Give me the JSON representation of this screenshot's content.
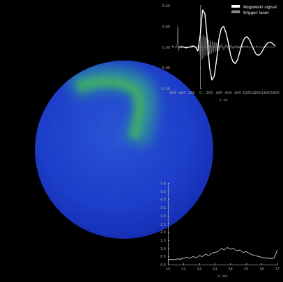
{
  "chart_data": [
    {
      "type": "line",
      "x_label": "t, ns",
      "xlim": [
        -600,
        1600
      ],
      "xticks": [
        -600,
        -400,
        -200,
        0,
        200,
        400,
        600,
        800,
        1000,
        1200,
        1400,
        1600
      ],
      "ylim": [
        -0.1,
        0.1
      ],
      "yticks": [
        {
          "value": -0.1,
          "label": "-0.10"
        },
        {
          "value": -0.05,
          "label": "-0.05"
        },
        {
          "value": 0,
          "label": "0.00"
        },
        {
          "value": 0.05,
          "label": "0.05"
        },
        {
          "value": 0.1,
          "label": "0.10"
        }
      ],
      "legend": "upper right",
      "grid": false,
      "series": [
        {
          "name": "Rogowski signal",
          "color": "#ffffff",
          "x": [
            -450,
            -400,
            -350,
            -300,
            -250,
            -200,
            -150,
            -100,
            -50,
            0,
            50,
            100,
            150,
            200,
            250,
            300,
            350,
            400,
            450,
            500,
            550,
            600,
            650,
            700,
            750,
            800,
            850,
            900,
            950,
            1000,
            1050,
            1100,
            1150,
            1200,
            1250,
            1300,
            1350,
            1400,
            1450,
            1500,
            1550,
            1600
          ],
          "values": [
            0,
            0,
            0,
            -0.002,
            0,
            0,
            0.003,
            0,
            -0.01,
            0.03,
            0.09,
            0.08,
            0.02,
            -0.05,
            -0.08,
            -0.07,
            -0.03,
            0.02,
            0.045,
            0.05,
            0.035,
            0.01,
            -0.02,
            -0.035,
            -0.04,
            -0.03,
            -0.01,
            0.01,
            0.022,
            0.025,
            0.018,
            0.005,
            -0.008,
            -0.018,
            -0.02,
            -0.015,
            -0.005,
            0.005,
            0.01,
            0.012,
            0.008,
            0.003
          ]
        },
        {
          "name": "trigger laser",
          "color": "#8a8a8a",
          "x": [
            -600,
            -550,
            -500,
            -490,
            -480,
            -470,
            -460,
            -450,
            -400,
            -300,
            -200,
            -100,
            -50,
            -20,
            0,
            20,
            40,
            60,
            80,
            100,
            120,
            140,
            160,
            180,
            200,
            220,
            240,
            260,
            280,
            300,
            320,
            340,
            360,
            380,
            400,
            450,
            500,
            550,
            600,
            650,
            700,
            750,
            800,
            900,
            1000,
            1100
          ],
          "values": [
            0,
            0,
            0,
            0.01,
            0.05,
            0.02,
            -0.01,
            0,
            0,
            0,
            0,
            0,
            0,
            0.005,
            -0.02,
            0.025,
            -0.03,
            0.03,
            -0.025,
            0.025,
            -0.02,
            0.022,
            -0.02,
            0.018,
            -0.018,
            0.016,
            -0.015,
            0.014,
            -0.013,
            0.012,
            -0.012,
            0.011,
            -0.01,
            0.01,
            -0.009,
            0.008,
            -0.007,
            0.006,
            -0.005,
            0.005,
            -0.004,
            0.003,
            -0.003,
            0.002,
            0,
            0
          ]
        }
      ]
    },
    {
      "type": "line",
      "x_label": "λ, nm",
      "xlim": [
        10,
        17
      ],
      "xticks": [
        10,
        11,
        12,
        13,
        14,
        15,
        16,
        17
      ],
      "ylim": [
        0,
        5
      ],
      "yticks": [
        {
          "value": 0,
          "label": "0.0"
        },
        {
          "value": 0.5,
          "label": "0.5"
        },
        {
          "value": 1,
          "label": "1.0"
        },
        {
          "value": 1.5,
          "label": "1.5"
        },
        {
          "value": 2,
          "label": "2.0"
        },
        {
          "value": 2.5,
          "label": "2.5"
        },
        {
          "value": 3,
          "label": "3.0"
        },
        {
          "value": 3.5,
          "label": "3.5"
        },
        {
          "value": 4,
          "label": "4.0"
        },
        {
          "value": 4.5,
          "label": "4.5"
        },
        {
          "value": 5,
          "label": "5.0"
        }
      ],
      "grid": false,
      "color": "#ffffff",
      "x": [
        10,
        10.2,
        10.4,
        10.6,
        10.8,
        11,
        11.2,
        11.4,
        11.6,
        11.8,
        12,
        12.2,
        12.4,
        12.6,
        12.8,
        13,
        13.2,
        13.4,
        13.6,
        13.8,
        14,
        14.2,
        14.4,
        14.6,
        14.8,
        15,
        15.2,
        15.4,
        15.6,
        15.8,
        16,
        16.2,
        16.4,
        16.6,
        16.8,
        17
      ],
      "values": [
        0.3,
        0.32,
        0.3,
        0.35,
        0.33,
        0.4,
        0.45,
        0.38,
        0.5,
        0.42,
        0.55,
        0.5,
        0.65,
        0.55,
        0.7,
        0.75,
        0.8,
        1.0,
        0.9,
        1.05,
        0.95,
        1.0,
        0.85,
        0.9,
        0.75,
        0.8,
        0.7,
        0.6,
        0.55,
        0.5,
        0.45,
        0.42,
        0.4,
        0.38,
        0.4,
        0.9
      ]
    }
  ]
}
